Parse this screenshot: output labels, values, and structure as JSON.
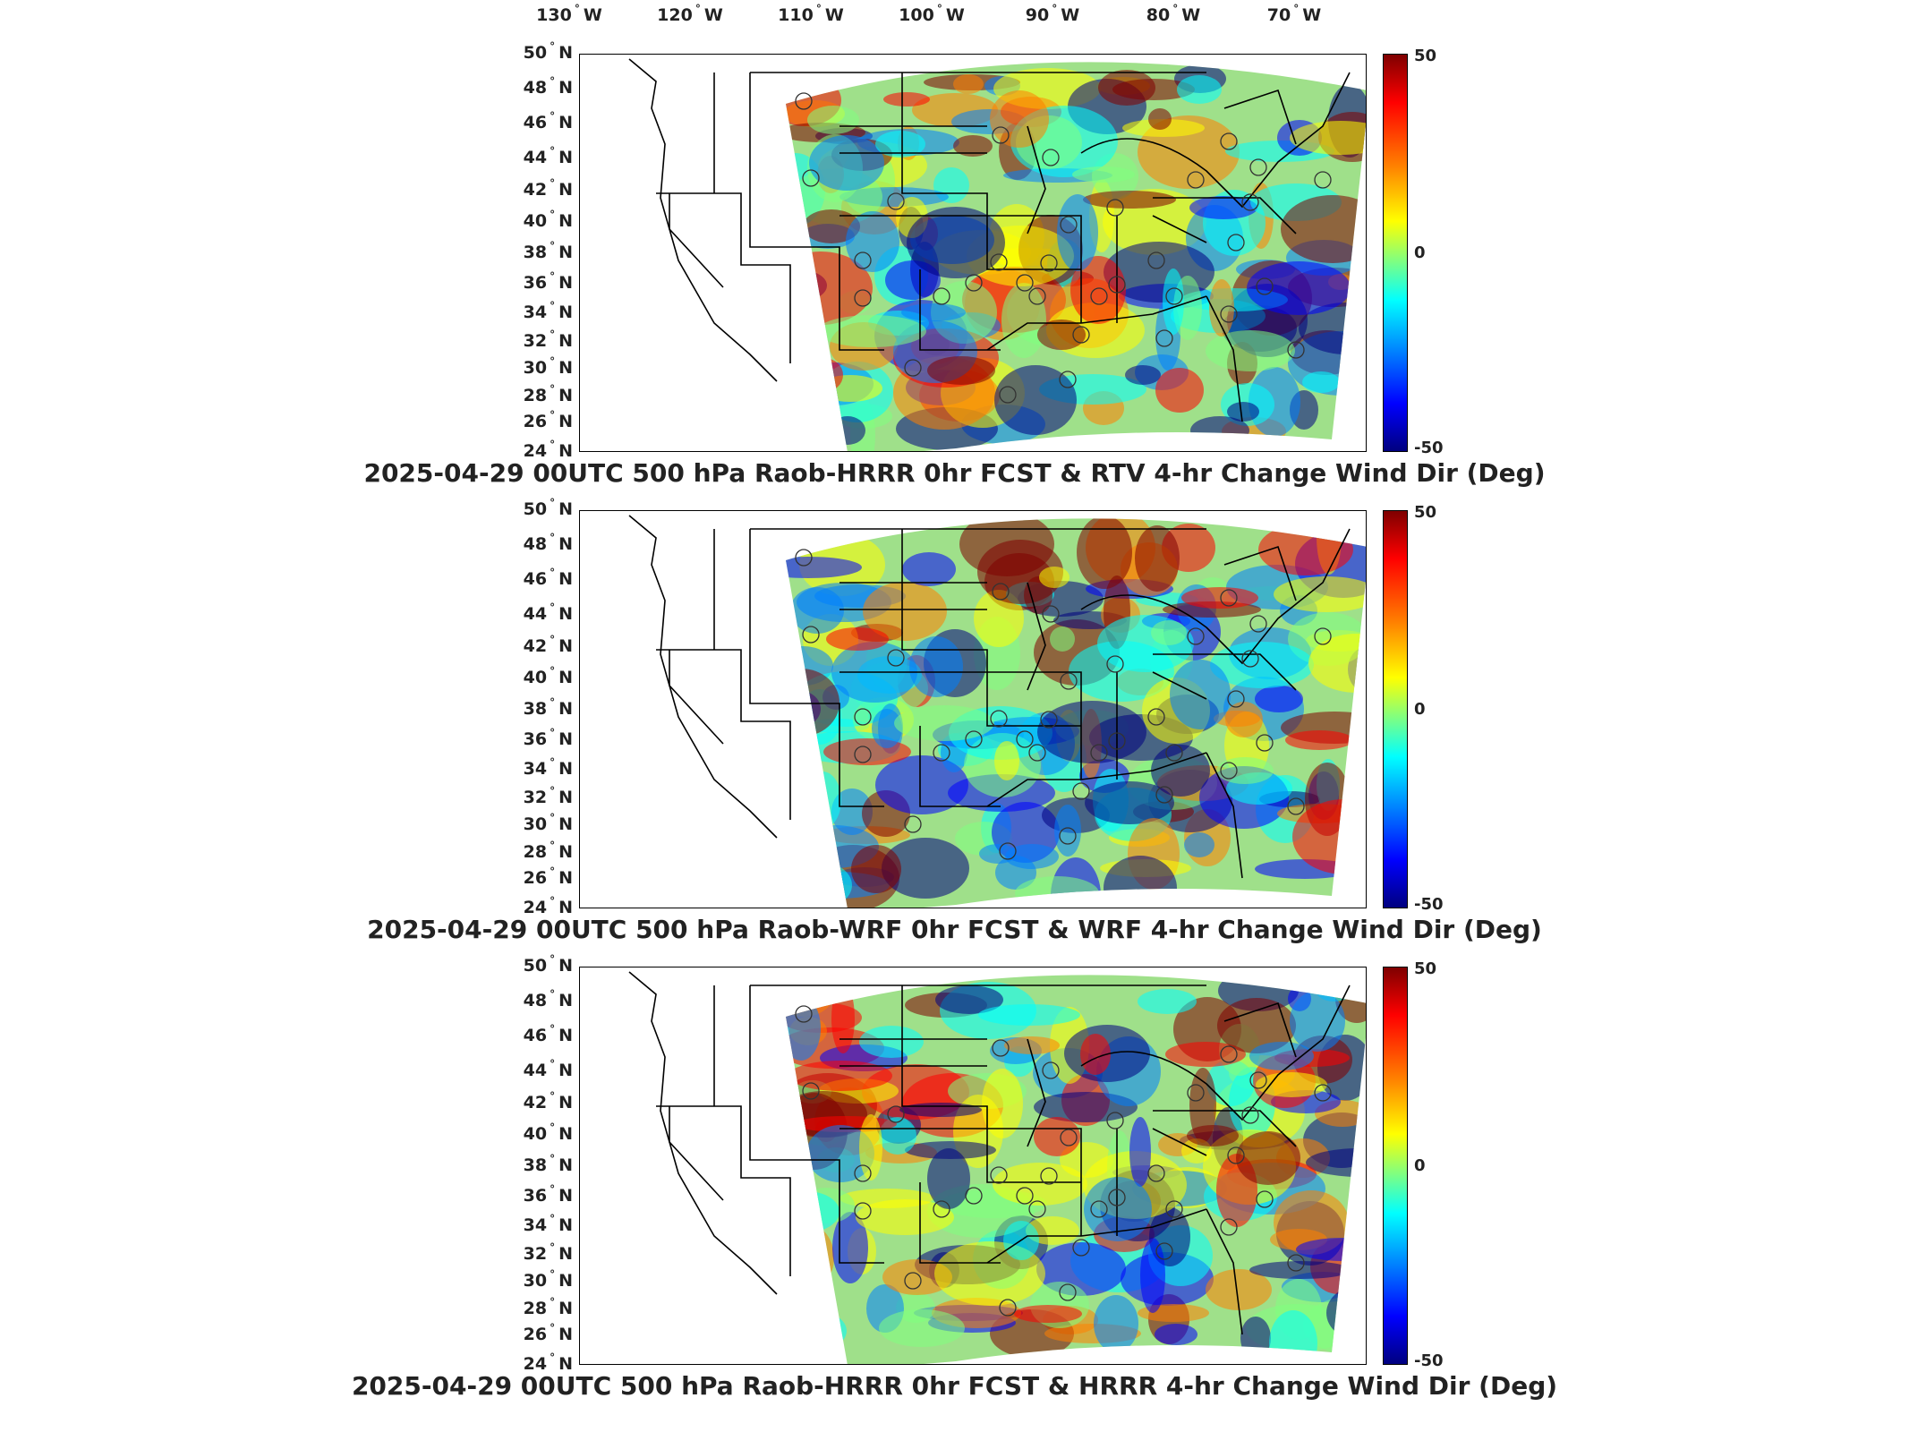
{
  "longitude_labels": [
    "130",
    "120",
    "110",
    "100",
    "90",
    "80",
    "70"
  ],
  "longitude_suffix": "W",
  "latitude_labels": [
    "50",
    "48",
    "46",
    "44",
    "42",
    "40",
    "38",
    "36",
    "34",
    "32",
    "30",
    "28",
    "26",
    "24"
  ],
  "latitude_suffix": "N",
  "degree_symbol": "°",
  "colorbar": {
    "max_label": "50",
    "mid_label": "0",
    "min_label": "-50",
    "colors": [
      "#7f0000",
      "#ff0000",
      "#ff8000",
      "#ffff00",
      "#80ff80",
      "#00ffff",
      "#0080ff",
      "#0000ff",
      "#00007f"
    ]
  },
  "panels": [
    {
      "title": "2025-04-29 00UTC 500 hPa Raob-HRRR 0hr FCST & RTV 4-hr Change Wind Dir (Deg)"
    },
    {
      "title": "2025-04-29 00UTC 500 hPa Raob-WRF 0hr FCST & WRF 4-hr Change Wind Dir (Deg)"
    },
    {
      "title": "2025-04-29 00UTC 500 hPa Raob-HRRR 0hr FCST & HRRR 4-hr Change Wind Dir (Deg)"
    }
  ]
}
